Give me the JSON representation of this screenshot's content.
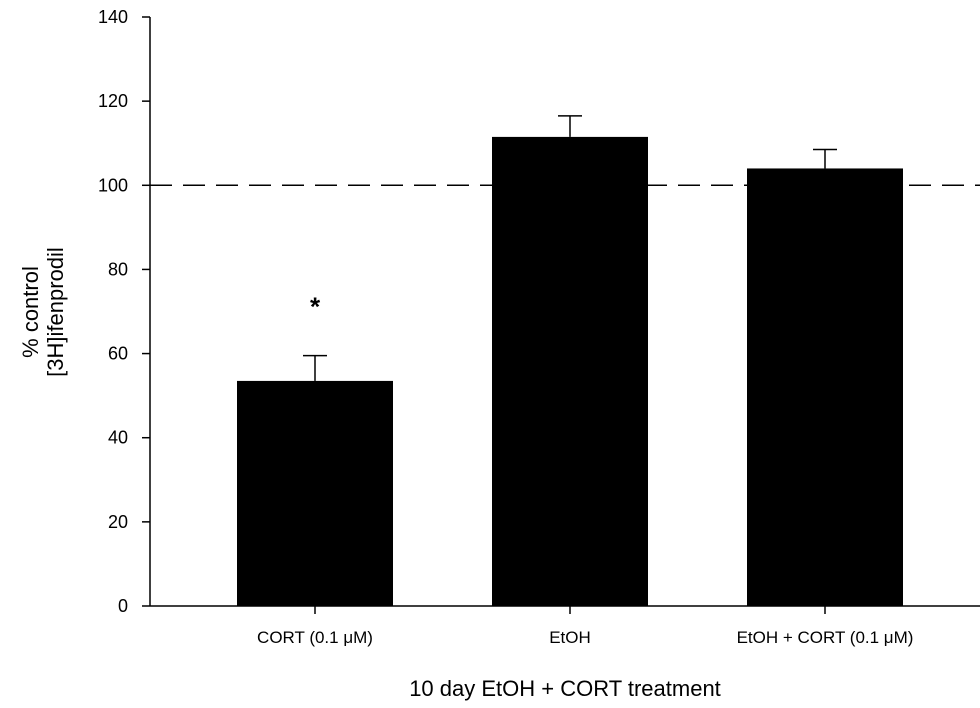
{
  "chart_data": {
    "type": "bar",
    "title": "",
    "xlabel": "10 day EtOH + CORT treatment",
    "ylabel_lines": [
      "% control",
      "[3H]ifenprodil"
    ],
    "categories": [
      "CORT (0.1 μM)",
      "EtOH",
      "EtOH + CORT (0.1 μM)"
    ],
    "values": [
      53.5,
      111.5,
      104
    ],
    "error_plus": [
      6,
      5,
      4.5
    ],
    "annotations": [
      "*",
      "",
      ""
    ],
    "ylim": [
      0,
      140
    ],
    "yticks": [
      0,
      20,
      40,
      60,
      80,
      100,
      120,
      140
    ],
    "reference_line": 100,
    "bar_color": "#000000",
    "grid": false
  }
}
